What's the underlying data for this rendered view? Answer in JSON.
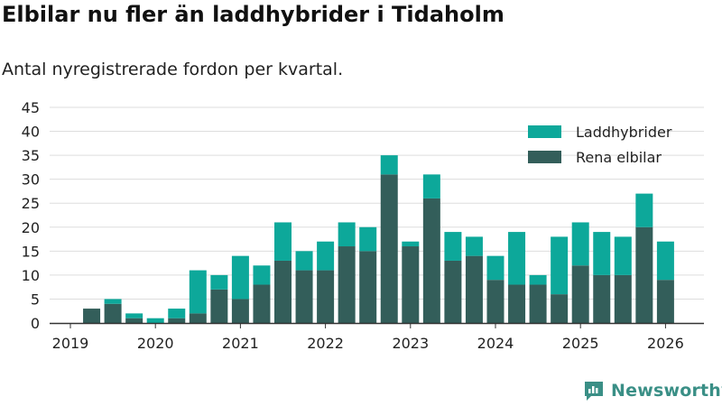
{
  "header": {
    "title": "Elbilar nu fler än laddhybrider i Tidaholm",
    "subtitle": "Antal nyregistrerade fordon per kvartal."
  },
  "brand": {
    "name": "Newsworthy"
  },
  "colors": {
    "laddhybrider": "#0da89a",
    "elbilar": "#335e5a",
    "grid": "#dddddd",
    "axis": "#333333",
    "brand": "#3a8f86"
  },
  "chart_data": {
    "type": "bar",
    "stacked": true,
    "categories": [
      "2019 Q1",
      "2019 Q2",
      "2019 Q3",
      "2019 Q4",
      "2020 Q1",
      "2020 Q2",
      "2020 Q3",
      "2020 Q4",
      "2021 Q1",
      "2021 Q2",
      "2021 Q3",
      "2021 Q4",
      "2022 Q1",
      "2022 Q2",
      "2022 Q3",
      "2022 Q4",
      "2023 Q1",
      "2023 Q2",
      "2023 Q3",
      "2023 Q4",
      "2024 Q1",
      "2024 Q2",
      "2024 Q3",
      "2024 Q4",
      "2025 Q1",
      "2025 Q2",
      "2025 Q3",
      "2025 Q4",
      "2026 Q1"
    ],
    "series": [
      {
        "name": "Rena elbilar",
        "values": [
          0,
          3,
          4,
          1,
          0,
          1,
          2,
          7,
          5,
          8,
          13,
          11,
          11,
          16,
          15,
          31,
          16,
          26,
          13,
          14,
          9,
          8,
          8,
          6,
          12,
          10,
          10,
          20,
          9
        ]
      },
      {
        "name": "Laddhybrider",
        "values": [
          0,
          0,
          1,
          1,
          1,
          2,
          9,
          3,
          9,
          4,
          8,
          4,
          6,
          5,
          5,
          4,
          1,
          5,
          6,
          4,
          5,
          11,
          2,
          12,
          9,
          9,
          8,
          7,
          8
        ]
      }
    ],
    "x_tick_labels": [
      "2019",
      "2020",
      "2021",
      "2022",
      "2023",
      "2024",
      "2025",
      "2026"
    ],
    "y_ticks": [
      0,
      5,
      10,
      15,
      20,
      25,
      30,
      35,
      40,
      45
    ],
    "ylim": [
      0,
      45
    ],
    "grid": true,
    "legend_position": "top-right",
    "legend_order": [
      "Laddhybrider",
      "Rena elbilar"
    ]
  }
}
